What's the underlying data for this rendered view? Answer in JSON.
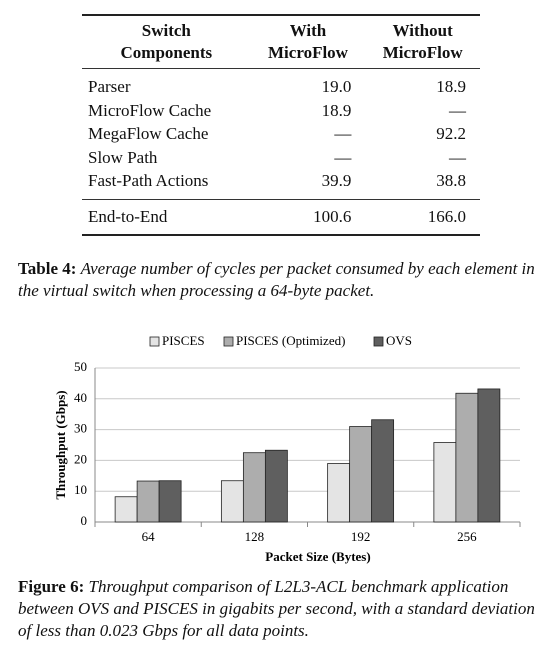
{
  "table": {
    "header": [
      [
        "Switch",
        "Components"
      ],
      [
        "With",
        "MicroFlow"
      ],
      [
        "Without",
        "MicroFlow"
      ]
    ],
    "rows": [
      [
        "Parser",
        "19.0",
        "18.9"
      ],
      [
        "MicroFlow Cache",
        "18.9",
        "—"
      ],
      [
        "MegaFlow Cache",
        "—",
        "92.2"
      ],
      [
        "Slow Path",
        "—",
        "—"
      ],
      [
        "Fast-Path Actions",
        "39.9",
        "38.8"
      ]
    ],
    "total": [
      "End-to-End",
      "100.6",
      "166.0"
    ]
  },
  "table_caption": {
    "label": "Table 4:",
    "text": "Average number of cycles per packet consumed by each element in the virtual switch when processing a 64-byte packet."
  },
  "chart_data": {
    "type": "bar",
    "x_label": "Packet Size (Bytes)",
    "y_label": "Throughput (Gbps)",
    "categories": [
      "64",
      "128",
      "192",
      "256"
    ],
    "series": [
      {
        "name": "PISCES",
        "color": "#e4e4e4",
        "values": [
          8.2,
          13.4,
          19.0,
          25.8
        ]
      },
      {
        "name": "PISCES (Optimized)",
        "color": "#adadad",
        "values": [
          13.3,
          22.5,
          31.0,
          41.8
        ]
      },
      {
        "name": "OVS",
        "color": "#5f5f5f",
        "values": [
          13.4,
          23.3,
          33.2,
          43.2
        ]
      }
    ],
    "ylim": [
      0,
      50
    ],
    "yticks": [
      0,
      10,
      20,
      30,
      40,
      50
    ],
    "grid": true,
    "legend": "top"
  },
  "figure_caption": {
    "label": "Figure 6:",
    "text": "Throughput comparison of L2L3-ACL benchmark application between OVS and PISCES in gigabits per second, with a standard deviation of less than 0.023 Gbps for all data points."
  }
}
